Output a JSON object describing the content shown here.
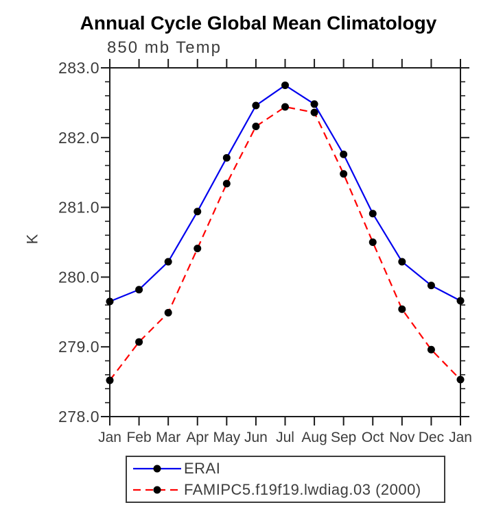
{
  "title": "Annual Cycle Global Mean Climatology",
  "subtitle": "850 mb Temp",
  "ylabel": "K",
  "chart_data": {
    "type": "line",
    "title": "Annual Cycle Global Mean Climatology",
    "subtitle": "850 mb Temp",
    "xlabel": "",
    "ylabel": "K",
    "categories": [
      "Jan",
      "Feb",
      "Mar",
      "Apr",
      "May",
      "Jun",
      "Jul",
      "Aug",
      "Sep",
      "Oct",
      "Nov",
      "Dec",
      "Jan"
    ],
    "series": [
      {
        "name": "ERAI",
        "color": "#0000ee",
        "dash": "",
        "values": [
          279.65,
          279.82,
          280.22,
          280.94,
          281.71,
          282.46,
          282.75,
          282.48,
          281.76,
          280.91,
          280.22,
          279.88,
          279.66
        ]
      },
      {
        "name": "FAMIPC5.f19f19.lwdiag.03 (2000)",
        "color": "#ff0000",
        "dash": "11,7",
        "values": [
          278.52,
          279.07,
          279.49,
          280.41,
          281.34,
          282.16,
          282.44,
          282.36,
          281.48,
          280.5,
          279.54,
          278.96,
          278.53
        ]
      }
    ],
    "marker_color": "#000000",
    "marker_shape": "filled-circle",
    "ylim": [
      278.0,
      283.0
    ],
    "y_major_step": 1.0,
    "y_minor_step": 0.2,
    "y_tick_decimals": 1,
    "grid": false,
    "legend_position": "bottom",
    "axis_color": "#1a1a1a",
    "tick_label_color": "#3c3c3c"
  }
}
